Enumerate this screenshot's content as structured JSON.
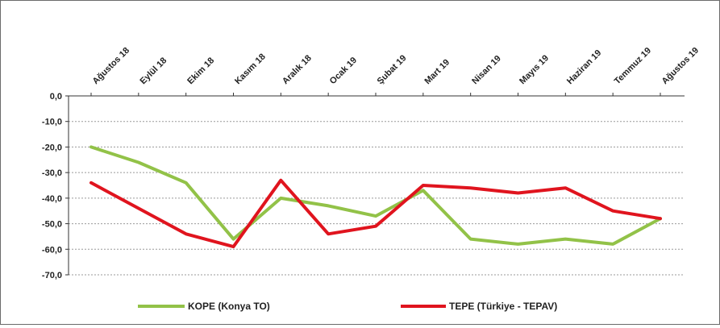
{
  "chart_data": {
    "type": "line",
    "categories": [
      "Ağustos 18",
      "Eylül 18",
      "Ekim 18",
      "Kasım 18",
      "Aralık 18",
      "Ocak 19",
      "Şubat 19",
      "Mart 19",
      "Nisan 19",
      "Mayıs 19",
      "Haziran 19",
      "Temmuz 19",
      "Ağustos 19"
    ],
    "y_ticks": [
      "0,0",
      "-10,0",
      "-20,0",
      "-30,0",
      "-40,0",
      "-50,0",
      "-60,0",
      "-70,0"
    ],
    "ylim": [
      -70,
      0
    ],
    "grid": "horizontal-dashed",
    "legend_position": "bottom",
    "series": [
      {
        "name": "KOPE (Konya TO)",
        "color": "#92c248",
        "values": [
          -20,
          -26,
          -34,
          -56,
          -40,
          -43,
          -47,
          -37,
          -56,
          -58,
          -56,
          -58,
          -48
        ]
      },
      {
        "name": "TEPE (Türkiye - TEPAV)",
        "color": "#e0141e",
        "values": [
          -34,
          -44,
          -54,
          -59,
          -33,
          -54,
          -51,
          -35,
          -36,
          -38,
          -36,
          -45,
          -48
        ]
      }
    ]
  }
}
